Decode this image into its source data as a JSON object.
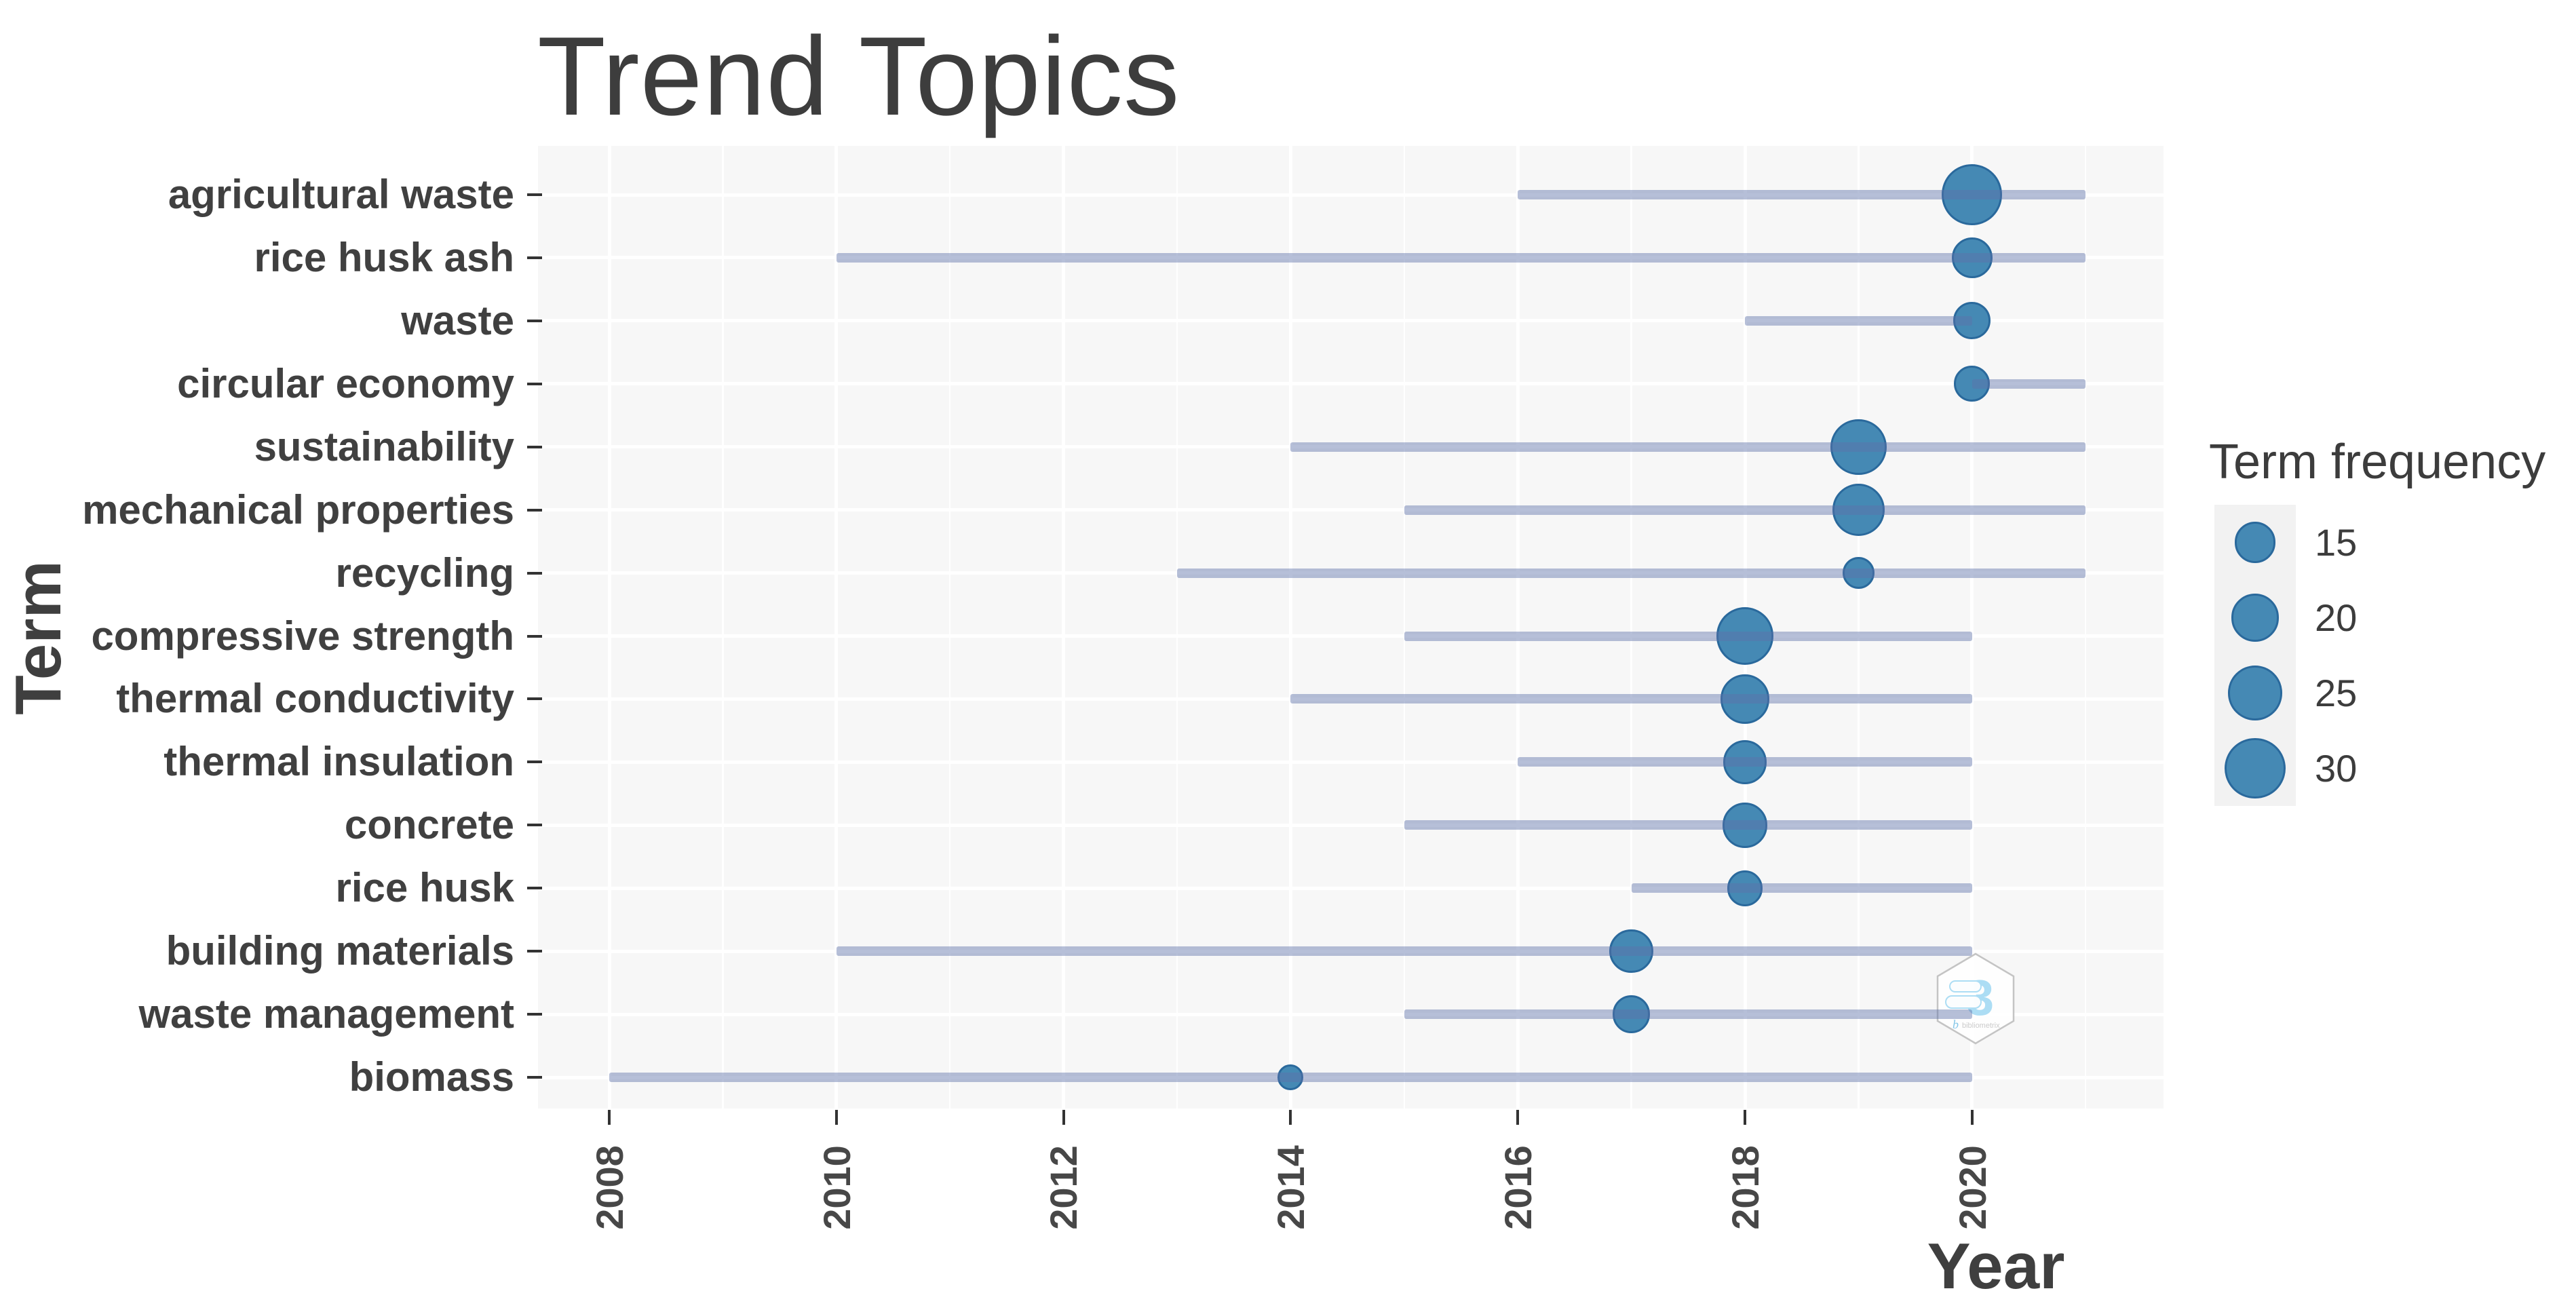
{
  "chart": {
    "title": "Trend Topics",
    "x_axis": {
      "label": "Year",
      "ticks": [
        "2008",
        "2010",
        "2012",
        "2014",
        "2016",
        "2018",
        "2020"
      ]
    },
    "y_axis": {
      "label": "Term"
    },
    "legend": {
      "title": "Term frequency",
      "sizes": [
        15,
        20,
        25,
        30
      ]
    }
  },
  "watermark": {
    "logo_glyph": "3",
    "caption": "bibliometrix"
  },
  "colors": {
    "bubble_fill": "#4589b4",
    "bubble_stroke": "#2a699c",
    "range_line": "rgba(94,114,168,0.45)",
    "panel_background": "#f7f7f7",
    "gridline": "#ffffff",
    "title_text": "#3d3d3d",
    "axis_text": "#474747"
  },
  "chart_data": {
    "type": "scatter",
    "title": "Trend Topics",
    "xlabel": "Year",
    "ylabel": "Term",
    "x_range": [
      2007.4,
      2021.6
    ],
    "x_ticks": [
      2008,
      2010,
      2012,
      2014,
      2016,
      2018,
      2020
    ],
    "grid": true,
    "legend_position": "right",
    "bubble_size_legend": {
      "title": "Term frequency",
      "values": [
        15,
        20,
        25,
        30
      ]
    },
    "encoding": "Each term row shows a horizontal band from year_q1 to year_q3 with a bubble at year_median sized by term frequency (frequencies estimated from bubble diameters).",
    "terms": [
      {
        "term": "agricultural waste",
        "year_q1": 2016,
        "year_median": 2020,
        "year_q3": 2021,
        "freq": 30
      },
      {
        "term": "rice husk ash",
        "year_q1": 2010,
        "year_median": 2020,
        "year_q3": 2021,
        "freq": 15
      },
      {
        "term": "waste",
        "year_q1": 2018,
        "year_median": 2020,
        "year_q3": 2020,
        "freq": 13
      },
      {
        "term": "circular economy",
        "year_q1": 2020,
        "year_median": 2020,
        "year_q3": 2021,
        "freq": 12
      },
      {
        "term": "sustainability",
        "year_q1": 2014,
        "year_median": 2019,
        "year_q3": 2021,
        "freq": 26
      },
      {
        "term": "mechanical properties",
        "year_q1": 2015,
        "year_median": 2019,
        "year_q3": 2021,
        "freq": 23
      },
      {
        "term": "recycling",
        "year_q1": 2013,
        "year_median": 2019,
        "year_q3": 2021,
        "freq": 10
      },
      {
        "term": "compressive strength",
        "year_q1": 2015,
        "year_median": 2018,
        "year_q3": 2020,
        "freq": 27
      },
      {
        "term": "thermal conductivity",
        "year_q1": 2014,
        "year_median": 2018,
        "year_q3": 2020,
        "freq": 21
      },
      {
        "term": "thermal insulation",
        "year_q1": 2016,
        "year_median": 2018,
        "year_q3": 2020,
        "freq": 17
      },
      {
        "term": "concrete",
        "year_q1": 2015,
        "year_median": 2018,
        "year_q3": 2020,
        "freq": 18
      },
      {
        "term": "rice husk",
        "year_q1": 2017,
        "year_median": 2018,
        "year_q3": 2020,
        "freq": 12
      },
      {
        "term": "building materials",
        "year_q1": 2010,
        "year_median": 2017,
        "year_q3": 2020,
        "freq": 17
      },
      {
        "term": "waste management",
        "year_q1": 2015,
        "year_median": 2017,
        "year_q3": 2020,
        "freq": 13
      },
      {
        "term": "biomass",
        "year_q1": 2008,
        "year_median": 2014,
        "year_q3": 2020,
        "freq": 7
      }
    ]
  }
}
